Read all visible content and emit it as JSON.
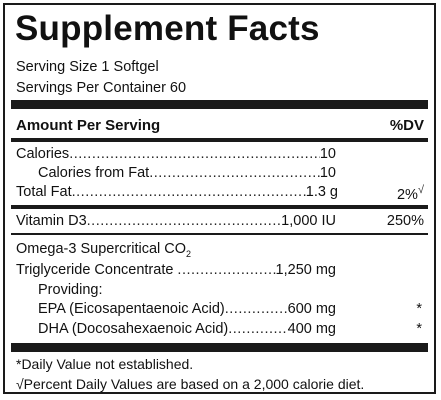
{
  "panel": {
    "title": "Supplement Facts",
    "serving_size": "Serving Size 1 Softgel",
    "servings_per_container": "Servings Per Container 60",
    "amount_per_serving": "Amount Per Serving",
    "dv_header": "%DV"
  },
  "nutrients": {
    "calories": {
      "label": "Calories",
      "value": "10"
    },
    "calories_from_fat": {
      "label": "Calories from Fat",
      "value": "10"
    },
    "total_fat": {
      "label": "Total Fat",
      "value": "1.3 g",
      "dv": "2%",
      "mark": "√"
    },
    "vitamin_d3": {
      "label": "Vitamin D3",
      "value": "1,000 IU",
      "dv": "250%"
    }
  },
  "omega": {
    "name": "Omega-3 Supercritical CO",
    "name_sub": "2",
    "concentrate_label": "Triglyceride Concentrate",
    "concentrate_value": "1,250 mg",
    "providing": "Providing:",
    "epa_label": "EPA (Eicosapentaenoic Acid)",
    "epa_value": "600 mg",
    "epa_dv": "*",
    "dha_label": "DHA (Docosahexaenoic Acid)",
    "dha_value": "400 mg",
    "dha_dv": "*"
  },
  "footnotes": {
    "dv_not_established": "*Daily Value not established.",
    "percent_basis": "√Percent Daily Values are based on a 2,000 calorie diet."
  }
}
